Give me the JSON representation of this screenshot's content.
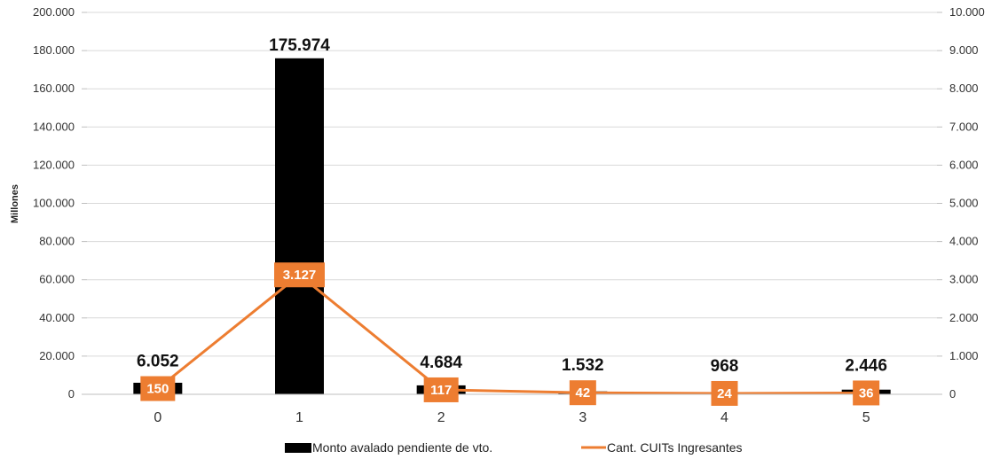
{
  "chart_data": {
    "type": "bar",
    "categories": [
      "0",
      "1",
      "2",
      "3",
      "4",
      "5"
    ],
    "ylabel": "Millones",
    "ylim": [
      0,
      200000
    ],
    "y2lim": [
      0,
      10000
    ],
    "yticks": [
      "0",
      "20.000",
      "40.000",
      "60.000",
      "80.000",
      "100.000",
      "120.000",
      "140.000",
      "160.000",
      "180.000",
      "200.000"
    ],
    "y2ticks": [
      "0",
      "1.000",
      "2.000",
      "3.000",
      "4.000",
      "5.000",
      "6.000",
      "7.000",
      "8.000",
      "9.000",
      "10.000"
    ],
    "grid": true,
    "legend_position": "bottom",
    "series": [
      {
        "name": "Monto avalado pendiente de vto.",
        "type": "bar",
        "axis": "left",
        "color": "#000000",
        "values": [
          6052,
          175974,
          4684,
          1532,
          968,
          2446
        ],
        "labels": [
          "6.052",
          "175.974",
          "4.684",
          "1.532",
          "968",
          "2.446"
        ]
      },
      {
        "name": "Cant. CUITs Ingresantes",
        "type": "line",
        "axis": "right",
        "color": "#ED7D31",
        "values": [
          150,
          3127,
          117,
          42,
          24,
          36
        ],
        "labels": [
          "150",
          "3.127",
          "117",
          "42",
          "24",
          "36"
        ]
      }
    ]
  }
}
